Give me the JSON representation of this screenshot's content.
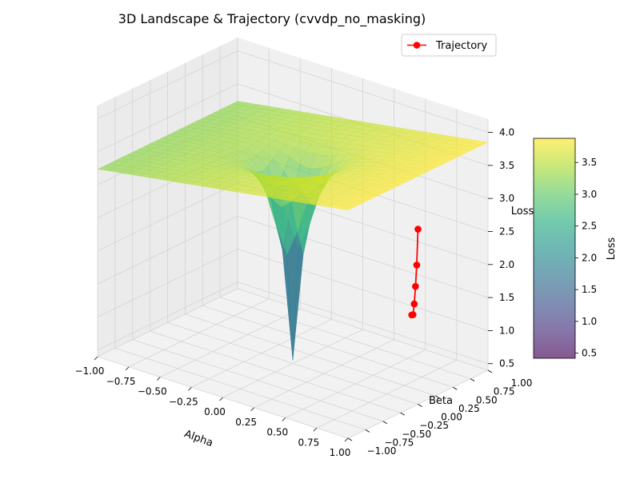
{
  "chart_data": {
    "type": "surface3d",
    "title": "3D Landscape & Trajectory (cvvdp_no_masking)",
    "xlabel": "Alpha",
    "ylabel": "Beta",
    "zlabel": "Loss",
    "xlim": [
      -1.0,
      1.0
    ],
    "ylim": [
      -1.0,
      1.0
    ],
    "zlim": [
      0.4,
      4.2
    ],
    "x_ticks": [
      -1.0,
      -0.75,
      -0.5,
      -0.25,
      0.0,
      0.25,
      0.5,
      0.75,
      1.0
    ],
    "x_tick_labels": [
      "−1.00",
      "−0.75",
      "−0.50",
      "−0.25",
      "0.00",
      "0.25",
      "0.50",
      "0.75",
      "1.00"
    ],
    "y_ticks": [
      -1.0,
      -0.75,
      -0.5,
      -0.25,
      0.0,
      0.25,
      0.5,
      0.75,
      1.0
    ],
    "y_tick_labels": [
      "−1.00",
      "−0.75",
      "−0.50",
      "−0.25",
      "0.00",
      "0.25",
      "0.50",
      "0.75",
      "1.00"
    ],
    "z_ticks": [
      0.5,
      1.0,
      1.5,
      2.0,
      2.5,
      3.0,
      3.5,
      4.0
    ],
    "z_tick_labels": [
      "0.5",
      "1.0",
      "1.5",
      "2.0",
      "2.5",
      "3.0",
      "3.5",
      "4.0"
    ],
    "colormap": "viridis",
    "surface_alpha": 0.65,
    "surface_loss_range": [
      0.45,
      3.85
    ],
    "trajectory": {
      "name": "Trajectory",
      "color": "#ff0000",
      "marker": "o",
      "points": [
        {
          "alpha": 0.95,
          "beta": 0.0,
          "loss": 1.72
        },
        {
          "alpha": 0.96,
          "beta": 0.0,
          "loss": 1.73
        },
        {
          "alpha": 0.97,
          "beta": 0.0,
          "loss": 1.9
        },
        {
          "alpha": 0.98,
          "beta": 0.0,
          "loss": 2.17
        },
        {
          "alpha": 0.99,
          "beta": 0.0,
          "loss": 2.5
        },
        {
          "alpha": 1.0,
          "beta": 0.0,
          "loss": 3.05
        }
      ]
    },
    "colorbar": {
      "label": "Loss",
      "ticks": [
        1.0,
        1.5,
        2.0,
        2.5,
        3.0,
        3.5,
        0.5
      ],
      "tick_labels": [
        "1.0",
        "1.5",
        "2.0",
        "2.5",
        "3.0",
        "3.5",
        "0.5"
      ],
      "range": [
        0.42,
        3.88
      ]
    },
    "legend": {
      "placement": "top-right",
      "entries": [
        "Trajectory"
      ]
    },
    "grid": true
  }
}
